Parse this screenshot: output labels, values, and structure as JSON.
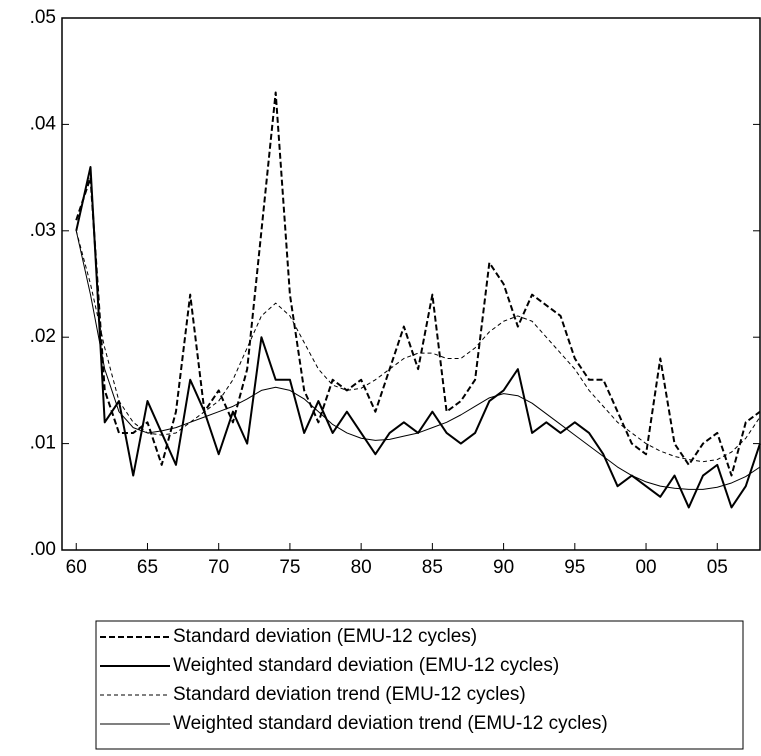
{
  "chart_data": {
    "type": "line",
    "x": [
      1960,
      1961,
      1962,
      1963,
      1964,
      1965,
      1966,
      1967,
      1968,
      1969,
      1970,
      1971,
      1972,
      1973,
      1974,
      1975,
      1976,
      1977,
      1978,
      1979,
      1980,
      1981,
      1982,
      1983,
      1984,
      1985,
      1986,
      1987,
      1988,
      1989,
      1990,
      1991,
      1992,
      1993,
      1994,
      1995,
      1996,
      1997,
      1998,
      1999,
      2000,
      2001,
      2002,
      2003,
      2004,
      2005,
      2006,
      2007,
      2008
    ],
    "series": [
      {
        "name": "Standard deviation (EMU-12 cycles)",
        "color": "#000000",
        "style": "dashed",
        "width": 2,
        "values": [
          0.031,
          0.035,
          0.015,
          0.011,
          0.011,
          0.012,
          0.008,
          0.013,
          0.024,
          0.013,
          0.015,
          0.012,
          0.017,
          0.03,
          0.043,
          0.024,
          0.015,
          0.012,
          0.016,
          0.015,
          0.016,
          0.013,
          0.017,
          0.021,
          0.017,
          0.024,
          0.013,
          0.014,
          0.016,
          0.027,
          0.025,
          0.021,
          0.024,
          0.023,
          0.022,
          0.018,
          0.016,
          0.016,
          0.013,
          0.01,
          0.009,
          0.018,
          0.01,
          0.008,
          0.01,
          0.011,
          0.007,
          0.012,
          0.013
        ]
      },
      {
        "name": "Weighted standard deviation (EMU-12 cycles)",
        "color": "#000000",
        "style": "solid",
        "width": 2,
        "values": [
          0.03,
          0.036,
          0.012,
          0.014,
          0.007,
          0.014,
          0.011,
          0.008,
          0.016,
          0.013,
          0.009,
          0.013,
          0.01,
          0.02,
          0.016,
          0.016,
          0.011,
          0.014,
          0.011,
          0.013,
          0.011,
          0.009,
          0.011,
          0.012,
          0.011,
          0.013,
          0.011,
          0.01,
          0.011,
          0.014,
          0.015,
          0.017,
          0.011,
          0.012,
          0.011,
          0.012,
          0.011,
          0.009,
          0.006,
          0.007,
          0.006,
          0.005,
          0.007,
          0.004,
          0.007,
          0.008,
          0.004,
          0.006,
          0.01
        ]
      },
      {
        "name": "Standard deviation trend (EMU-12 cycles)",
        "color": "#000000",
        "style": "dashed",
        "width": 1,
        "values": [
          0.03,
          0.025,
          0.019,
          0.014,
          0.012,
          0.011,
          0.0108,
          0.011,
          0.012,
          0.013,
          0.014,
          0.016,
          0.019,
          0.022,
          0.0232,
          0.022,
          0.0195,
          0.017,
          0.0155,
          0.015,
          0.0152,
          0.016,
          0.017,
          0.018,
          0.0185,
          0.0185,
          0.018,
          0.018,
          0.019,
          0.0205,
          0.0215,
          0.022,
          0.0215,
          0.02,
          0.0185,
          0.017,
          0.015,
          0.0135,
          0.012,
          0.011,
          0.01,
          0.0093,
          0.0088,
          0.0085,
          0.0083,
          0.0085,
          0.0092,
          0.0105,
          0.0125
        ]
      },
      {
        "name": "Weighted standard deviation trend (EMU-12 cycles)",
        "color": "#000000",
        "style": "solid",
        "width": 1,
        "values": [
          0.03,
          0.024,
          0.017,
          0.013,
          0.0115,
          0.011,
          0.0112,
          0.0115,
          0.012,
          0.0125,
          0.013,
          0.0135,
          0.0142,
          0.015,
          0.0153,
          0.015,
          0.0142,
          0.013,
          0.0118,
          0.011,
          0.0105,
          0.0103,
          0.0104,
          0.0107,
          0.011,
          0.0115,
          0.012,
          0.0127,
          0.0135,
          0.0143,
          0.0147,
          0.0145,
          0.0138,
          0.0128,
          0.0118,
          0.0108,
          0.0098,
          0.0088,
          0.0078,
          0.007,
          0.0064,
          0.006,
          0.0058,
          0.0057,
          0.0057,
          0.0059,
          0.0063,
          0.0069,
          0.0078
        ]
      }
    ],
    "xlim": [
      1959,
      2008
    ],
    "xticks": [
      {
        "value": 1960,
        "label": "60"
      },
      {
        "value": 1965,
        "label": "65"
      },
      {
        "value": 1970,
        "label": "70"
      },
      {
        "value": 1975,
        "label": "75"
      },
      {
        "value": 1980,
        "label": "80"
      },
      {
        "value": 1985,
        "label": "85"
      },
      {
        "value": 1990,
        "label": "90"
      },
      {
        "value": 1995,
        "label": "95"
      },
      {
        "value": 2000,
        "label": "00"
      },
      {
        "value": 2005,
        "label": "05"
      }
    ],
    "ylim": [
      0,
      0.05
    ],
    "yticks": [
      {
        "value": 0,
        "label": ".00"
      },
      {
        "value": 0.01,
        "label": ".01"
      },
      {
        "value": 0.02,
        "label": ".02"
      },
      {
        "value": 0.03,
        "label": ".03"
      },
      {
        "value": 0.04,
        "label": ".04"
      },
      {
        "value": 0.05,
        "label": ".05"
      }
    ],
    "grid": false,
    "legend": "bottom"
  }
}
